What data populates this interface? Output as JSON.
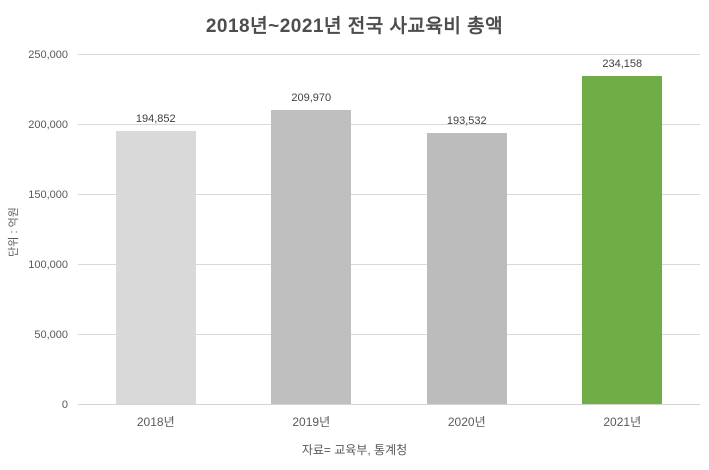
{
  "chart_data": {
    "type": "bar",
    "title": "2018년~2021년 전국 사교육비 총액",
    "categories": [
      "2018년",
      "2019년",
      "2020년",
      "2021년"
    ],
    "values": [
      194852,
      209970,
      193532,
      234158
    ],
    "data_labels": [
      "194,852",
      "209,970",
      "193,532",
      "234,158"
    ],
    "bar_colors": [
      "#d9d9d9",
      "#bfbfbf",
      "#bcbcbc",
      "#70ad47"
    ],
    "ylabel": "단위 : 억원",
    "xlabel": "",
    "ylim": [
      0,
      250000
    ],
    "y_ticks": [
      "0",
      "50,000",
      "100,000",
      "150,000",
      "200,000",
      "250,000"
    ],
    "y_tick_values": [
      0,
      50000,
      100000,
      150000,
      200000,
      250000
    ],
    "grid": "horizontal",
    "legend": "none",
    "source_note": "자료= 교육부, 통계청"
  },
  "colors": {
    "title_text": "#4d4d4d",
    "axis_text": "#595959",
    "data_label_text": "#404040",
    "gridline": "#d9d9d9",
    "background": "#ffffff",
    "highlight_bar": "#70ad47"
  }
}
